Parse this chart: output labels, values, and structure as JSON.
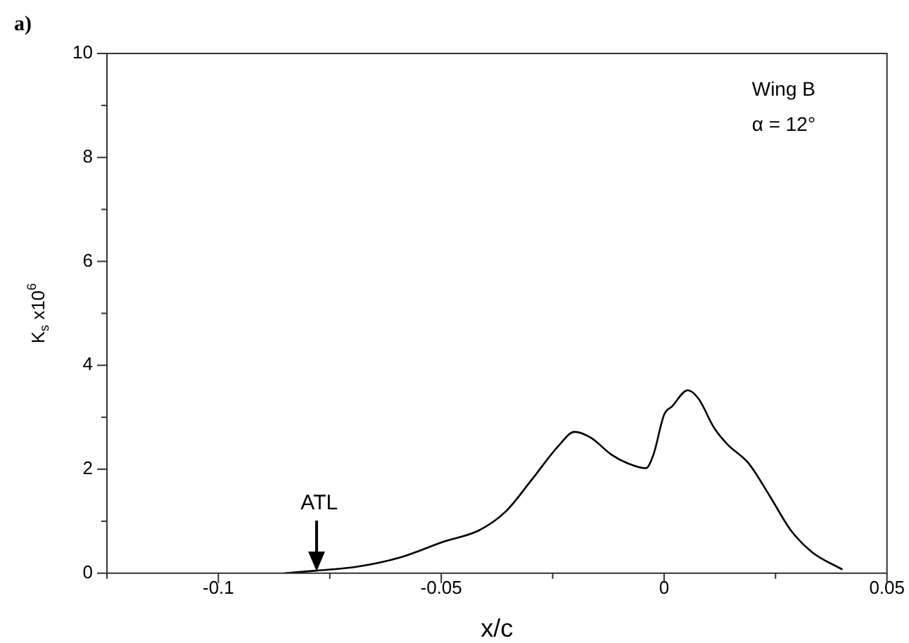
{
  "chart_data": {
    "type": "line",
    "title": "a)",
    "xlabel": "x/c",
    "ylabel": "K$_{s}$ x10$^{6}$",
    "x": [
      -0.0851,
      -0.078,
      -0.0686,
      -0.059,
      -0.0497,
      -0.0414,
      -0.0355,
      -0.0296,
      -0.0236,
      -0.0201,
      -0.0165,
      -0.0118,
      -0.0083,
      -0.0041,
      -0.0024,
      0,
      0.0018,
      0.0053,
      0.0077,
      0.0112,
      0.0142,
      0.0189,
      0.0236,
      0.0284,
      0.0331,
      0.04
    ],
    "series": [
      {
        "color": "#000000",
        "values": [
          0,
          0.05,
          0.13,
          0.31,
          0.6,
          0.83,
          1.19,
          1.81,
          2.46,
          2.72,
          2.61,
          2.28,
          2.12,
          2.02,
          2.28,
          3.05,
          3.21,
          3.52,
          3.36,
          2.8,
          2.48,
          2.12,
          1.5,
          0.83,
          0.41,
          0.07
        ]
      }
    ],
    "xlim": [
      -0.125,
      0.05
    ],
    "xticks": [
      {
        "value": -0.125,
        "label": null
      },
      -0.1,
      {
        "value": -0.075,
        "label": null
      },
      -0.05,
      {
        "value": -0.025,
        "label": null
      },
      0,
      {
        "value": 0.025,
        "label": null
      },
      0.05
    ],
    "ylim": [
      0,
      10
    ],
    "yticks": [
      0,
      {
        "value": 1,
        "label": null
      },
      2,
      {
        "value": 3,
        "label": null
      },
      4,
      {
        "value": 5,
        "label": null
      },
      6,
      {
        "value": 7,
        "label": null
      },
      8,
      {
        "value": 9,
        "label": null
      },
      10
    ],
    "annotations": [
      "Wing B",
      "α = 12°",
      {
        "text": "ATL",
        "x": -0.078,
        "y": 0.05
      }
    ],
    "grid": false,
    "legend": false,
    "marker": "none",
    "line_style": "solid"
  }
}
